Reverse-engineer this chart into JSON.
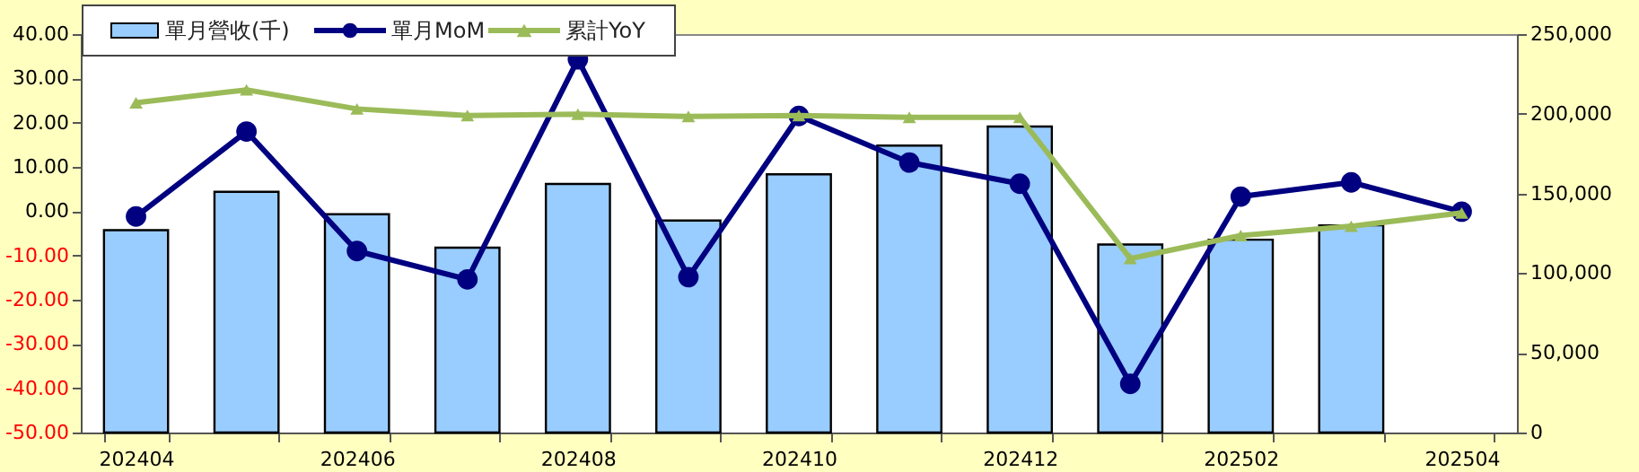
{
  "chart_data": {
    "type": "bar",
    "categories": [
      "202404",
      null,
      "202406",
      null,
      "202408",
      null,
      "202410",
      null,
      "202412",
      null,
      "202502",
      null,
      "202504"
    ],
    "series": [
      {
        "name": "單月營收(千)",
        "color": "#99ccff",
        "axis": "y2",
        "values": [
          127000,
          151000,
          137000,
          116000,
          156000,
          133000,
          162000,
          180000,
          192000,
          118000,
          121000,
          130000,
          null
        ]
      },
      {
        "name": "單月MoM",
        "type": "line",
        "marker": "circle",
        "color": "#000080",
        "values": [
          -1.2,
          18.0,
          -9.0,
          -15.4,
          34.3,
          -14.9,
          21.5,
          11.0,
          6.2,
          -39.0,
          3.3,
          6.5,
          -0.1
        ]
      },
      {
        "name": "累計YoY",
        "type": "line",
        "marker": "triangle",
        "color": "#9bbb59",
        "values": [
          24.5,
          27.4,
          23.1,
          21.6,
          21.9,
          21.4,
          21.6,
          21.2,
          21.2,
          -10.7,
          -5.5,
          -3.4,
          -0.4
        ]
      }
    ],
    "ylim": [
      -50,
      40
    ],
    "yticks": [
      {
        "value": -50,
        "label": "-50.00"
      },
      {
        "value": -40,
        "label": "-40.00"
      },
      {
        "value": -30,
        "label": "-30.00"
      },
      {
        "value": -20,
        "label": "-20.00"
      },
      {
        "value": -10,
        "label": "-10.00"
      },
      {
        "value": 0,
        "label": "0.00"
      },
      {
        "value": 10,
        "label": "10.00"
      },
      {
        "value": 20,
        "label": "20.00"
      },
      {
        "value": 30,
        "label": "30.00"
      },
      {
        "value": 40,
        "label": "40.00"
      }
    ],
    "y2lim": [
      0,
      250000
    ],
    "y2ticks": [
      0,
      {
        "value": 50000,
        "label": "50,000"
      },
      {
        "value": 100000,
        "label": "100,000"
      },
      {
        "value": 150000,
        "label": "150,000"
      },
      {
        "value": 200000,
        "label": "200,000"
      },
      {
        "value": 250000,
        "label": "250,000"
      }
    ],
    "legend": "top left"
  }
}
